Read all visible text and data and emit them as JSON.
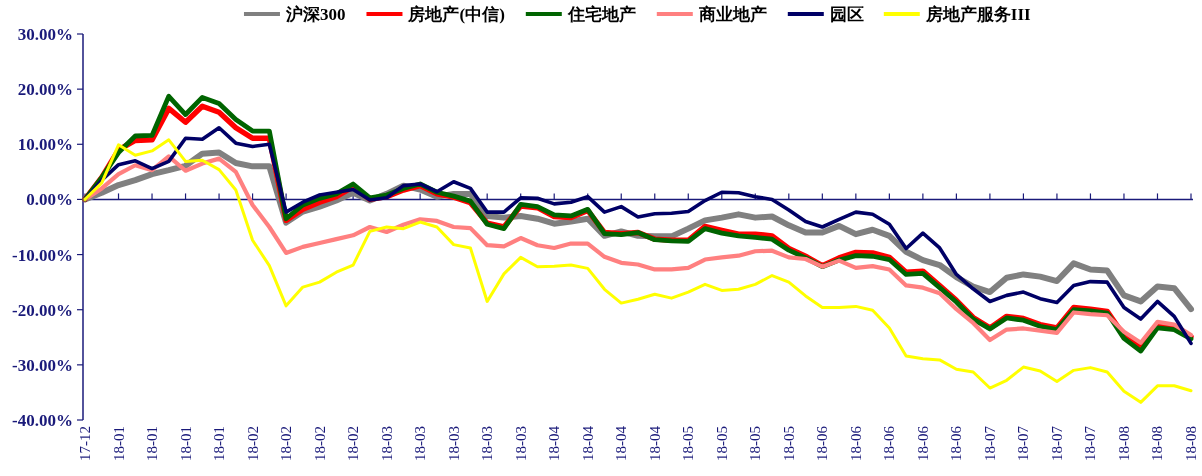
{
  "chart_data": {
    "type": "line",
    "legend": "top",
    "categories": [
      "17-12",
      null,
      "18-01",
      null,
      "18-01",
      null,
      "18-01",
      null,
      "18-01",
      null,
      "18-02",
      null,
      "18-02",
      null,
      "18-02",
      null,
      "18-02",
      null,
      "18-03",
      null,
      "18-03",
      null,
      "18-03",
      null,
      "18-03",
      null,
      "18-03",
      null,
      "18-04",
      null,
      "18-04",
      null,
      "18-04",
      null,
      "18-04",
      null,
      "18-05",
      null,
      "18-05",
      null,
      "18-05",
      null,
      "18-05",
      null,
      "18-06",
      null,
      "18-06",
      null,
      "18-06",
      null,
      "18-06",
      null,
      "18-06",
      null,
      "18-07",
      null,
      "18-07",
      null,
      "18-07",
      null,
      "18-07",
      null,
      "18-08",
      null,
      "18-08",
      null,
      "18-08"
    ],
    "ylim": [
      -40,
      30
    ],
    "ref_lines": [
      {
        "axis": "y",
        "value": 0,
        "color": "#1a1a7a"
      }
    ],
    "yticks": [
      {
        "value": -40,
        "label": "-40.00%"
      },
      {
        "value": -30,
        "label": "-30.00%"
      },
      {
        "value": -20,
        "label": "-20.00%"
      },
      {
        "value": -10,
        "label": "-10.00%"
      },
      {
        "value": 0,
        "label": "0.00%"
      },
      {
        "value": 10,
        "label": "10.00%"
      },
      {
        "value": 20,
        "label": "20.00%"
      },
      {
        "value": 30,
        "label": "30.00%"
      }
    ],
    "series": [
      {
        "name": "沪深300",
        "color": "#808080",
        "values": [
          0,
          1.2,
          2.6,
          3.5,
          4.6,
          5.3,
          6.1,
          8.3,
          8.5,
          6.6,
          6.0,
          6.0,
          -4.2,
          -2.2,
          -1.3,
          -0.2,
          1.2,
          -0.2,
          1.0,
          2.5,
          1.8,
          0.5,
          1.0,
          1.0,
          -3.0,
          -3.3,
          -3.0,
          -3.5,
          -4.4,
          -4.0,
          -3.5,
          -6.6,
          -5.8,
          -6.6,
          -6.7,
          -6.7,
          -5.3,
          -3.8,
          -3.3,
          -2.7,
          -3.3,
          -3.1,
          -4.7,
          -6.0,
          -6.0,
          -4.8,
          -6.3,
          -5.5,
          -6.6,
          -9.5,
          -11.0,
          -11.9,
          -14.1,
          -15.8,
          -16.8,
          -14.2,
          -13.6,
          -14.0,
          -14.8,
          -11.6,
          -12.7,
          -12.9,
          -17.4,
          -18.5,
          -15.8,
          -16.1,
          -19.9
        ]
      },
      {
        "name": "房地产(中信)",
        "color": "#ff0000",
        "values": [
          0,
          4.0,
          9.0,
          10.7,
          10.8,
          16.5,
          14.0,
          16.9,
          15.8,
          13.0,
          11.1,
          11.1,
          -3.8,
          -1.8,
          -0.5,
          0.5,
          2.3,
          0.0,
          0.5,
          1.7,
          2.5,
          1.0,
          0.4,
          -0.6,
          -4.3,
          -5.0,
          -1.2,
          -1.5,
          -3.1,
          -3.3,
          -2.0,
          -6.0,
          -6.2,
          -6.0,
          -7.2,
          -7.4,
          -7.4,
          -4.9,
          -5.6,
          -6.3,
          -6.3,
          -6.6,
          -8.9,
          -10.3,
          -12.0,
          -10.6,
          -9.6,
          -9.7,
          -10.5,
          -13.2,
          -13.0,
          -15.6,
          -18.3,
          -21.4,
          -23.3,
          -21.2,
          -21.6,
          -22.7,
          -23.3,
          -19.6,
          -19.9,
          -20.3,
          -24.7,
          -26.8,
          -23.0,
          -23.2,
          -24.9
        ]
      },
      {
        "name": "住宅地产",
        "color": "#006400",
        "values": [
          0,
          4.0,
          8.5,
          11.5,
          11.6,
          18.7,
          15.4,
          18.5,
          17.4,
          14.5,
          12.4,
          12.4,
          -3.5,
          -1.0,
          0.2,
          1.0,
          2.8,
          0.3,
          0.8,
          2.0,
          2.8,
          1.3,
          0.6,
          -0.3,
          -4.5,
          -5.3,
          -0.9,
          -1.3,
          -2.8,
          -3.0,
          -1.8,
          -6.2,
          -6.4,
          -6.0,
          -7.3,
          -7.5,
          -7.6,
          -5.3,
          -6.1,
          -6.6,
          -6.9,
          -7.2,
          -9.2,
          -10.6,
          -12.2,
          -11.0,
          -10.2,
          -10.3,
          -10.9,
          -13.6,
          -13.4,
          -16.0,
          -18.6,
          -21.7,
          -23.5,
          -21.5,
          -21.9,
          -23.0,
          -23.6,
          -20.0,
          -20.2,
          -20.6,
          -25.2,
          -27.5,
          -23.3,
          -23.6,
          -25.3
        ]
      },
      {
        "name": "商业地产",
        "color": "#ff8080",
        "values": [
          0,
          2.0,
          4.6,
          6.2,
          5.3,
          7.8,
          5.2,
          6.5,
          7.4,
          5.0,
          -1.0,
          -5.0,
          -9.7,
          -8.6,
          -7.9,
          -7.2,
          -6.5,
          -5.0,
          -5.9,
          -4.6,
          -3.6,
          -3.9,
          -5.0,
          -5.2,
          -8.3,
          -8.5,
          -7.0,
          -8.3,
          -8.8,
          -8.0,
          -8.0,
          -10.4,
          -11.5,
          -11.8,
          -12.7,
          -12.7,
          -12.4,
          -10.9,
          -10.5,
          -10.2,
          -9.4,
          -9.3,
          -10.5,
          -10.8,
          -12.2,
          -11.1,
          -12.4,
          -12.1,
          -12.7,
          -15.6,
          -16.0,
          -17.0,
          -19.9,
          -22.4,
          -25.5,
          -23.6,
          -23.4,
          -23.8,
          -24.2,
          -20.5,
          -20.8,
          -21.0,
          -24.0,
          -26.0,
          -22.2,
          -22.7,
          -24.6
        ]
      },
      {
        "name": "园区",
        "color": "#000066",
        "values": [
          0,
          3.5,
          6.3,
          7.0,
          5.6,
          6.9,
          11.1,
          10.9,
          13.0,
          10.2,
          9.6,
          10.0,
          -2.3,
          -0.5,
          0.8,
          1.3,
          1.8,
          -0.1,
          0.3,
          2.5,
          2.8,
          1.4,
          3.2,
          2.0,
          -2.3,
          -2.3,
          0.3,
          0.2,
          -0.8,
          -0.5,
          0.5,
          -2.3,
          -1.3,
          -3.2,
          -2.6,
          -2.5,
          -2.2,
          -0.2,
          1.3,
          1.2,
          0.5,
          0.0,
          -1.9,
          -4.0,
          -5.0,
          -3.6,
          -2.3,
          -2.7,
          -4.5,
          -8.9,
          -6.1,
          -8.8,
          -13.6,
          -16.2,
          -18.5,
          -17.4,
          -16.8,
          -18.0,
          -18.7,
          -15.6,
          -14.9,
          -15.0,
          -19.6,
          -21.7,
          -18.5,
          -21.2,
          -26.1
        ]
      },
      {
        "name": "房地产服务III",
        "color": "#ffff00",
        "values": [
          0,
          3.0,
          9.9,
          8.0,
          8.8,
          10.8,
          6.9,
          7.1,
          5.4,
          1.7,
          -7.4,
          -12.0,
          -19.3,
          -15.9,
          -15.0,
          -13.2,
          -11.9,
          -5.8,
          -5.0,
          -5.3,
          -4.1,
          -5.0,
          -8.2,
          -8.8,
          -18.5,
          -13.5,
          -10.5,
          -12.2,
          -12.1,
          -11.9,
          -12.5,
          -16.3,
          -18.8,
          -18.1,
          -17.2,
          -17.9,
          -16.8,
          -15.4,
          -16.5,
          -16.3,
          -15.4,
          -13.8,
          -15.0,
          -17.5,
          -19.6,
          -19.6,
          -19.4,
          -20.1,
          -23.3,
          -28.4,
          -28.9,
          -29.1,
          -30.8,
          -31.3,
          -34.2,
          -32.8,
          -30.4,
          -31.1,
          -33.0,
          -31.0,
          -30.5,
          -31.3,
          -34.8,
          -36.8,
          -33.8,
          -33.8,
          -34.7
        ]
      }
    ]
  }
}
